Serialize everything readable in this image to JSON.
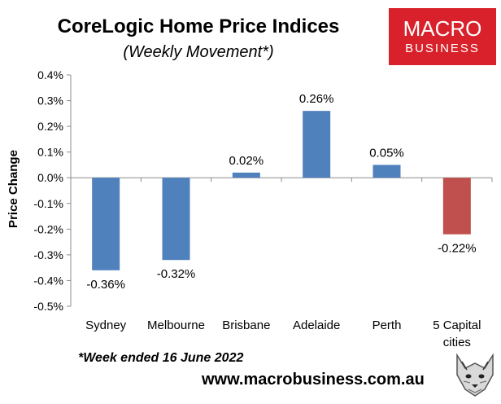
{
  "title": "CoreLogic Home Price Indices",
  "subtitle": "(Weekly Movement*)",
  "logo": {
    "line1": "MACRO",
    "line2": "BUSINESS",
    "bg_color": "#d8212a"
  },
  "footnote": "*Week ended 16 June 2022",
  "website": "www.macrobusiness.com.au",
  "mascot_icon": "wolf-head-icon",
  "chart_data": {
    "type": "bar",
    "categories": [
      "Sydney",
      "Melbourne",
      "Brisbane",
      "Adelaide",
      "Perth",
      "5 Capital cities"
    ],
    "category_lines": [
      [
        "Sydney"
      ],
      [
        "Melbourne"
      ],
      [
        "Brisbane"
      ],
      [
        "Adelaide"
      ],
      [
        "Perth"
      ],
      [
        "5 Capital",
        "cities"
      ]
    ],
    "values": [
      -0.36,
      -0.32,
      0.02,
      0.26,
      0.05,
      -0.22
    ],
    "data_labels": [
      "-0.36%",
      "-0.32%",
      "0.02%",
      "0.26%",
      "0.05%",
      "-0.22%"
    ],
    "bar_colors": [
      "#4f81bd",
      "#4f81bd",
      "#4f81bd",
      "#4f81bd",
      "#4f81bd",
      "#c0504d"
    ],
    "ylabel": "Price Change",
    "ylim": [
      -0.5,
      0.4
    ],
    "yticks": [
      0.4,
      0.3,
      0.2,
      0.1,
      0.0,
      -0.1,
      -0.2,
      -0.3,
      -0.4,
      -0.5
    ],
    "ytick_labels": [
      "0.4%",
      "0.3%",
      "0.2%",
      "0.1%",
      "0.0%",
      "-0.1%",
      "-0.2%",
      "-0.3%",
      "-0.4%",
      "-0.5%"
    ],
    "grid": false,
    "legend": "none"
  }
}
